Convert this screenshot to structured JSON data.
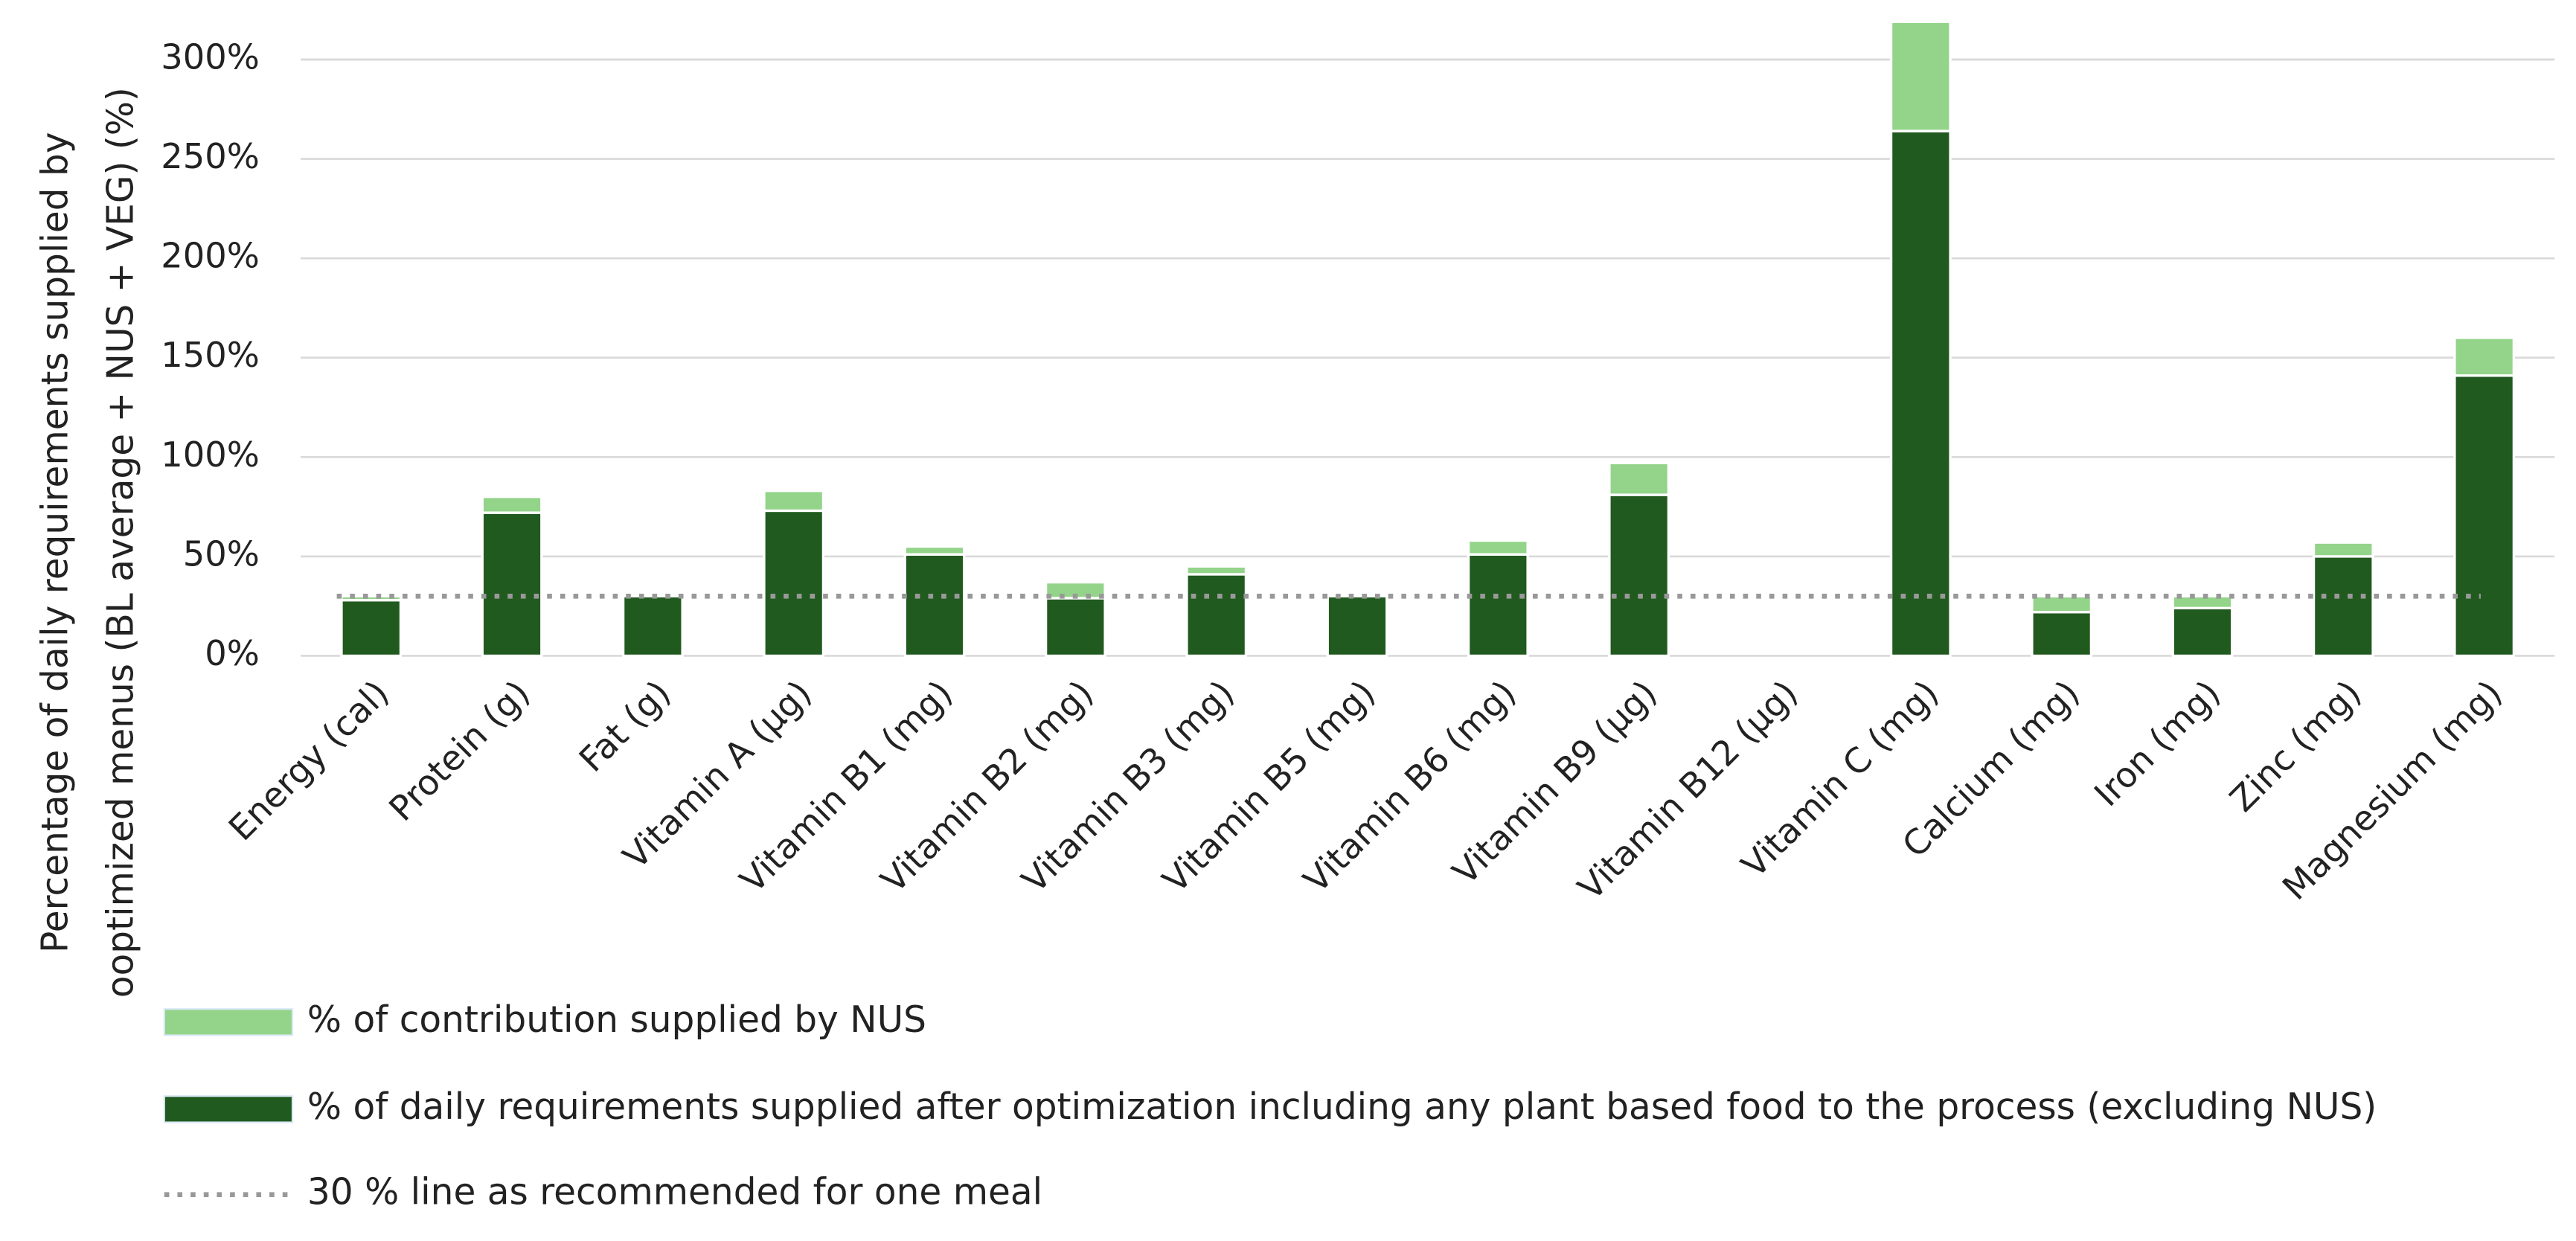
{
  "chart_data": {
    "type": "stacked_bar",
    "ylabel": [
      "Percentage of daily requirements supplied by",
      "ooptimized menus (BL average + NUS + VEG) (%)"
    ],
    "categories": [
      "Energy (cal)",
      "Protein (g)",
      "Fat (g)",
      "Vitamin A (µg)",
      "Vitamin B1 (mg)",
      "Vitamin B2 (mg)",
      "Vitamin B3 (mg)",
      "Vitamin B5 (mg)",
      "Vitamin B6 (mg)",
      "Vitamin B9 (µg)",
      "Vitamin B12 (µg)",
      "Vitamin C (mg)",
      "Calcium (mg)",
      "Iron (mg)",
      "Zinc (mg)",
      "Magnesium (mg)"
    ],
    "series": [
      {
        "name": "% of daily requirements supplied after optimization including any plant based food to the process (excluding NUS)",
        "color": "#215a1f",
        "values": [
          28,
          72,
          30,
          73,
          51,
          29,
          41,
          30,
          51,
          81,
          0,
          264,
          22,
          24,
          50,
          141
        ]
      },
      {
        "name": "% of contribution supplied by NUS",
        "color": "#93d48a",
        "values": [
          2,
          8,
          0,
          10,
          4,
          8,
          4,
          0,
          7,
          16,
          0,
          55,
          8,
          6,
          7,
          19
        ]
      }
    ],
    "reference_line": {
      "value": 30,
      "label": "30 % line as recommended for one meal",
      "color": "#999999"
    },
    "ylim": [
      0,
      300
    ],
    "yticks": [
      {
        "value": 0,
        "label": "0%"
      },
      {
        "value": 50,
        "label": "50%"
      },
      {
        "value": 100,
        "label": "100%"
      },
      {
        "value": 150,
        "label": "150%"
      },
      {
        "value": 200,
        "label": "200%"
      },
      {
        "value": 250,
        "label": "250%"
      },
      {
        "value": 300,
        "label": "300%"
      }
    ],
    "grid": true
  }
}
